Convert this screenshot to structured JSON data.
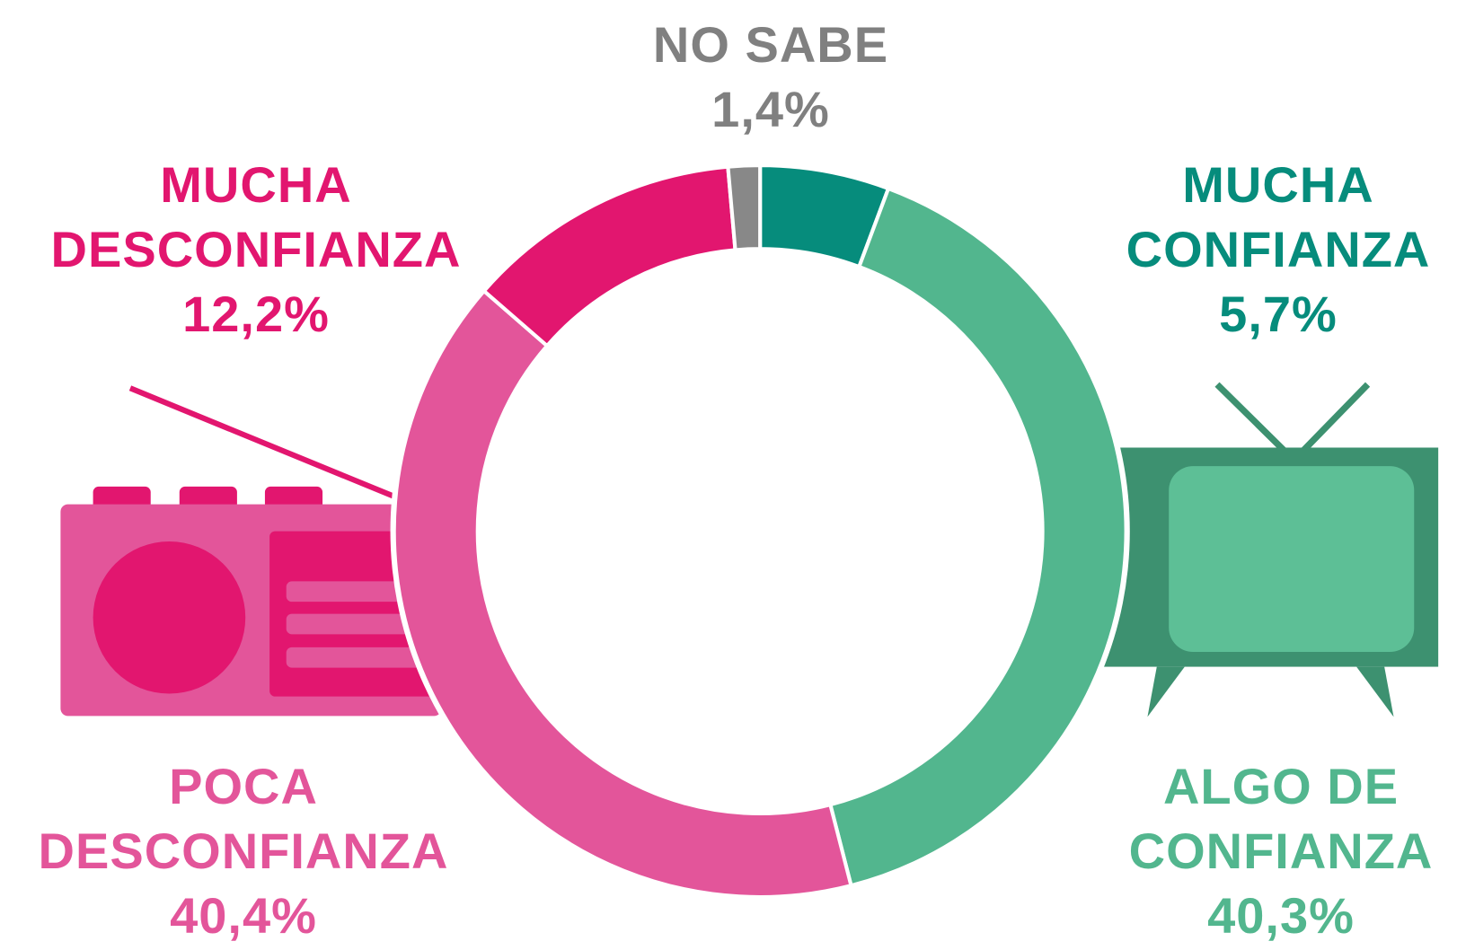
{
  "chart_data": {
    "type": "donut",
    "categories": [
      "MUCHA CONFIANZA",
      "ALGO DE CONFIANZA",
      "POCA DESCONFIANZA",
      "MUCHA DESCONFIANZA",
      "NO SABE"
    ],
    "values": [
      5.7,
      40.3,
      40.4,
      12.2,
      1.4
    ],
    "value_labels": [
      "5,7%",
      "40,3%",
      "40,4%",
      "12,2%",
      "1,4%"
    ],
    "colors": [
      "#068c7c",
      "#52b68e",
      "#e3559a",
      "#e2166f",
      "#888888"
    ]
  }
}
